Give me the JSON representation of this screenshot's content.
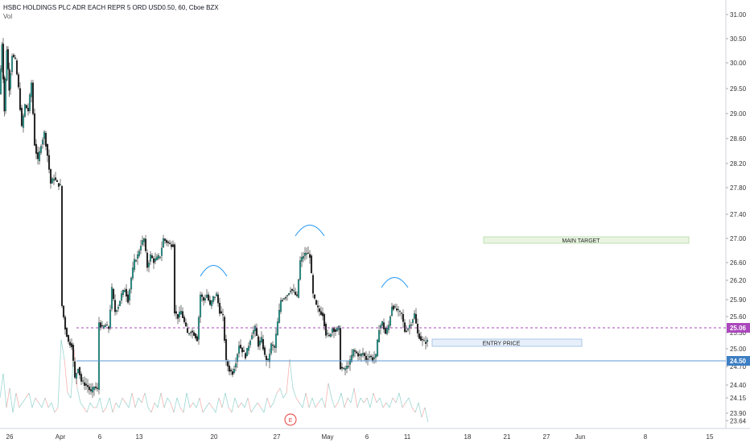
{
  "header": {
    "symbol_line": "HSBC HOLDINGS PLC ADR EACH REPR 5 ORD USD0.50, 60, Cboe BZX",
    "indicator": "Vol"
  },
  "colors": {
    "up": "#26a69a",
    "down": "#ef5350",
    "candle_body": "#1e1e1e",
    "current_price": "#ab47bc",
    "entry_line": "#5b9bd5",
    "main_target_fill": "#e9f5e1",
    "main_target_border": "#b5d8a6",
    "entry_box_fill": "#e6effa",
    "entry_box_border": "#9bbce3",
    "arc": "#2196f3",
    "earnings": "#e53935"
  },
  "chart_data": {
    "type": "candlestick",
    "title": "HSBC HOLDINGS PLC ADR EACH REPR 5 ORD USD0.50, 60, Cboe BZX",
    "x_ticks": [
      "26",
      "Apr",
      "6",
      "13",
      "20",
      "27",
      "May",
      "6",
      "11",
      "18",
      "21",
      "27",
      "Jun",
      "8",
      "15"
    ],
    "y_ticks": [
      "31.00",
      "30.50",
      "30.00",
      "29.50",
      "29.00",
      "28.60",
      "28.20",
      "27.80",
      "27.40",
      "27.00",
      "26.60",
      "26.20",
      "25.90",
      "25.60",
      "25.30",
      "25.00",
      "24.70",
      "24.40",
      "24.15",
      "23.90",
      "23.64"
    ],
    "ylim": [
      23.5,
      31.1
    ],
    "current_price": "25.06",
    "support_price": "24.50",
    "annotations": {
      "main_target": "MAIN TARGET",
      "entry_price": "ENTRY PRICE",
      "earnings_marker": "E"
    },
    "price_path": [
      [
        0,
        29.5
      ],
      [
        3,
        30.4
      ],
      [
        6,
        29.2
      ],
      [
        9,
        30.3
      ],
      [
        12,
        29.6
      ],
      [
        16,
        30.2
      ],
      [
        20,
        30.1
      ],
      [
        24,
        29.6
      ],
      [
        28,
        28.9
      ],
      [
        32,
        29.3
      ],
      [
        36,
        29.2
      ],
      [
        40,
        29.7
      ],
      [
        44,
        28.6
      ],
      [
        48,
        28.3
      ],
      [
        52,
        28.6
      ],
      [
        56,
        28.8
      ],
      [
        60,
        28.4
      ],
      [
        64,
        27.9
      ],
      [
        68,
        28.0
      ],
      [
        72,
        27.9
      ],
      [
        76,
        27.85
      ],
      [
        78,
        25.7
      ],
      [
        82,
        25.3
      ],
      [
        86,
        25.05
      ],
      [
        90,
        25.0
      ],
      [
        94,
        24.4
      ],
      [
        98,
        24.6
      ],
      [
        102,
        24.35
      ],
      [
        106,
        24.3
      ],
      [
        110,
        24.25
      ],
      [
        114,
        24.15
      ],
      [
        118,
        24.25
      ],
      [
        122,
        24.2
      ],
      [
        124,
        25.4
      ],
      [
        128,
        25.3
      ],
      [
        132,
        25.35
      ],
      [
        136,
        25.3
      ],
      [
        140,
        26.0
      ],
      [
        144,
        25.6
      ],
      [
        148,
        25.7
      ],
      [
        152,
        25.9
      ],
      [
        156,
        26.0
      ],
      [
        160,
        25.8
      ],
      [
        164,
        26.2
      ],
      [
        168,
        26.5
      ],
      [
        172,
        26.6
      ],
      [
        176,
        26.8
      ],
      [
        180,
        26.9
      ],
      [
        184,
        26.4
      ],
      [
        188,
        26.6
      ],
      [
        192,
        26.5
      ],
      [
        196,
        26.55
      ],
      [
        200,
        26.6
      ],
      [
        204,
        26.9
      ],
      [
        208,
        26.85
      ],
      [
        212,
        26.8
      ],
      [
        216,
        26.8
      ],
      [
        218,
        25.6
      ],
      [
        222,
        25.5
      ],
      [
        226,
        25.6
      ],
      [
        230,
        25.4
      ],
      [
        234,
        25.2
      ],
      [
        238,
        25.25
      ],
      [
        242,
        25.2
      ],
      [
        246,
        25.1
      ],
      [
        250,
        25.9
      ],
      [
        254,
        25.8
      ],
      [
        258,
        25.9
      ],
      [
        262,
        25.7
      ],
      [
        266,
        25.85
      ],
      [
        270,
        25.9
      ],
      [
        274,
        25.6
      ],
      [
        278,
        25.5
      ],
      [
        282,
        24.7
      ],
      [
        286,
        24.55
      ],
      [
        290,
        24.5
      ],
      [
        294,
        24.7
      ],
      [
        298,
        25.0
      ],
      [
        302,
        24.9
      ],
      [
        306,
        24.8
      ],
      [
        310,
        25.0
      ],
      [
        314,
        25.2
      ],
      [
        318,
        25.3
      ],
      [
        322,
        25.0
      ],
      [
        326,
        25.1
      ],
      [
        330,
        24.8
      ],
      [
        334,
        24.7
      ],
      [
        338,
        25.0
      ],
      [
        342,
        24.95
      ],
      [
        346,
        25.4
      ],
      [
        350,
        25.8
      ],
      [
        354,
        25.85
      ],
      [
        358,
        25.9
      ],
      [
        362,
        26.0
      ],
      [
        366,
        25.95
      ],
      [
        370,
        25.85
      ],
      [
        374,
        26.5
      ],
      [
        378,
        26.6
      ],
      [
        382,
        26.65
      ],
      [
        386,
        26.6
      ],
      [
        390,
        25.9
      ],
      [
        394,
        25.7
      ],
      [
        398,
        25.6
      ],
      [
        402,
        25.55
      ],
      [
        406,
        25.2
      ],
      [
        410,
        25.15
      ],
      [
        414,
        25.3
      ],
      [
        418,
        25.25
      ],
      [
        422,
        25.3
      ],
      [
        424,
        24.6
      ],
      [
        428,
        24.55
      ],
      [
        432,
        24.6
      ],
      [
        436,
        24.7
      ],
      [
        440,
        24.9
      ],
      [
        444,
        24.85
      ],
      [
        448,
        24.8
      ],
      [
        452,
        24.85
      ],
      [
        456,
        24.75
      ],
      [
        460,
        24.8
      ],
      [
        464,
        24.75
      ],
      [
        468,
        24.8
      ],
      [
        472,
        25.3
      ],
      [
        476,
        25.4
      ],
      [
        480,
        25.2
      ],
      [
        484,
        25.35
      ],
      [
        488,
        25.7
      ],
      [
        492,
        25.65
      ],
      [
        496,
        25.6
      ],
      [
        500,
        25.55
      ],
      [
        504,
        25.25
      ],
      [
        508,
        25.3
      ],
      [
        512,
        25.4
      ],
      [
        516,
        25.55
      ],
      [
        520,
        25.2
      ],
      [
        524,
        25.1
      ],
      [
        528,
        25.05
      ],
      [
        532,
        25.06
      ]
    ],
    "volume_path": [
      [
        0,
        0.3
      ],
      [
        4,
        0.55
      ],
      [
        8,
        0.2
      ],
      [
        12,
        0.4
      ],
      [
        16,
        0.15
      ],
      [
        20,
        0.35
      ],
      [
        24,
        0.2
      ],
      [
        28,
        0.25
      ],
      [
        32,
        0.3
      ],
      [
        36,
        0.35
      ],
      [
        40,
        0.2
      ],
      [
        44,
        0.3
      ],
      [
        48,
        0.25
      ],
      [
        52,
        0.2
      ],
      [
        56,
        0.3
      ],
      [
        60,
        0.2
      ],
      [
        64,
        0.25
      ],
      [
        68,
        0.15
      ],
      [
        72,
        0.2
      ],
      [
        76,
        0.9
      ],
      [
        80,
        0.7
      ],
      [
        84,
        0.35
      ],
      [
        88,
        0.3
      ],
      [
        92,
        0.8
      ],
      [
        96,
        0.4
      ],
      [
        100,
        0.25
      ],
      [
        104,
        0.2
      ],
      [
        108,
        0.15
      ],
      [
        112,
        0.25
      ],
      [
        116,
        0.2
      ],
      [
        120,
        0.2
      ],
      [
        124,
        0.3
      ],
      [
        128,
        0.15
      ],
      [
        132,
        0.2
      ],
      [
        136,
        0.3
      ],
      [
        140,
        0.15
      ],
      [
        144,
        0.25
      ],
      [
        148,
        0.2
      ],
      [
        152,
        0.3
      ],
      [
        156,
        0.25
      ],
      [
        160,
        0.2
      ],
      [
        164,
        0.35
      ],
      [
        168,
        0.2
      ],
      [
        172,
        0.3
      ],
      [
        176,
        0.25
      ],
      [
        180,
        0.35
      ],
      [
        184,
        0.2
      ],
      [
        188,
        0.15
      ],
      [
        192,
        0.25
      ],
      [
        196,
        0.2
      ],
      [
        200,
        0.35
      ],
      [
        204,
        0.2
      ],
      [
        208,
        0.3
      ],
      [
        212,
        0.25
      ],
      [
        216,
        0.15
      ],
      [
        220,
        0.3
      ],
      [
        224,
        0.2
      ],
      [
        228,
        0.15
      ],
      [
        232,
        0.35
      ],
      [
        236,
        0.2
      ],
      [
        240,
        0.25
      ],
      [
        244,
        0.2
      ],
      [
        248,
        0.3
      ],
      [
        252,
        0.15
      ],
      [
        256,
        0.2
      ],
      [
        260,
        0.25
      ],
      [
        264,
        0.2
      ],
      [
        268,
        0.15
      ],
      [
        272,
        0.3
      ],
      [
        276,
        0.2
      ],
      [
        280,
        0.35
      ],
      [
        284,
        0.2
      ],
      [
        288,
        0.15
      ],
      [
        292,
        0.3
      ],
      [
        296,
        0.2
      ],
      [
        300,
        0.25
      ],
      [
        304,
        0.2
      ],
      [
        308,
        0.3
      ],
      [
        312,
        0.15
      ],
      [
        316,
        0.2
      ],
      [
        320,
        0.25
      ],
      [
        324,
        0.2
      ],
      [
        328,
        0.15
      ],
      [
        332,
        0.3
      ],
      [
        336,
        0.2
      ],
      [
        340,
        0.25
      ],
      [
        344,
        0.35
      ],
      [
        348,
        0.4
      ],
      [
        352,
        0.3
      ],
      [
        356,
        0.35
      ],
      [
        360,
        0.7
      ],
      [
        364,
        0.4
      ],
      [
        368,
        0.3
      ],
      [
        372,
        0.25
      ],
      [
        376,
        0.2
      ],
      [
        380,
        0.35
      ],
      [
        384,
        0.2
      ],
      [
        388,
        0.3
      ],
      [
        392,
        0.2
      ],
      [
        396,
        0.25
      ],
      [
        400,
        0.3
      ],
      [
        404,
        0.2
      ],
      [
        408,
        0.45
      ],
      [
        412,
        0.3
      ],
      [
        416,
        0.2
      ],
      [
        420,
        0.25
      ],
      [
        424,
        0.35
      ],
      [
        428,
        0.2
      ],
      [
        432,
        0.3
      ],
      [
        436,
        0.25
      ],
      [
        440,
        0.4
      ],
      [
        444,
        0.2
      ],
      [
        448,
        0.3
      ],
      [
        452,
        0.25
      ],
      [
        456,
        0.3
      ],
      [
        460,
        0.2
      ],
      [
        464,
        0.35
      ],
      [
        468,
        0.25
      ],
      [
        472,
        0.3
      ],
      [
        476,
        0.2
      ],
      [
        480,
        0.25
      ],
      [
        484,
        0.2
      ],
      [
        488,
        0.3
      ],
      [
        492,
        0.25
      ],
      [
        496,
        0.35
      ],
      [
        500,
        0.2
      ],
      [
        504,
        0.25
      ],
      [
        508,
        0.3
      ],
      [
        512,
        0.2
      ],
      [
        516,
        0.15
      ],
      [
        520,
        0.25
      ],
      [
        524,
        0.1
      ],
      [
        528,
        0.2
      ],
      [
        532,
        0.05
      ]
    ]
  }
}
